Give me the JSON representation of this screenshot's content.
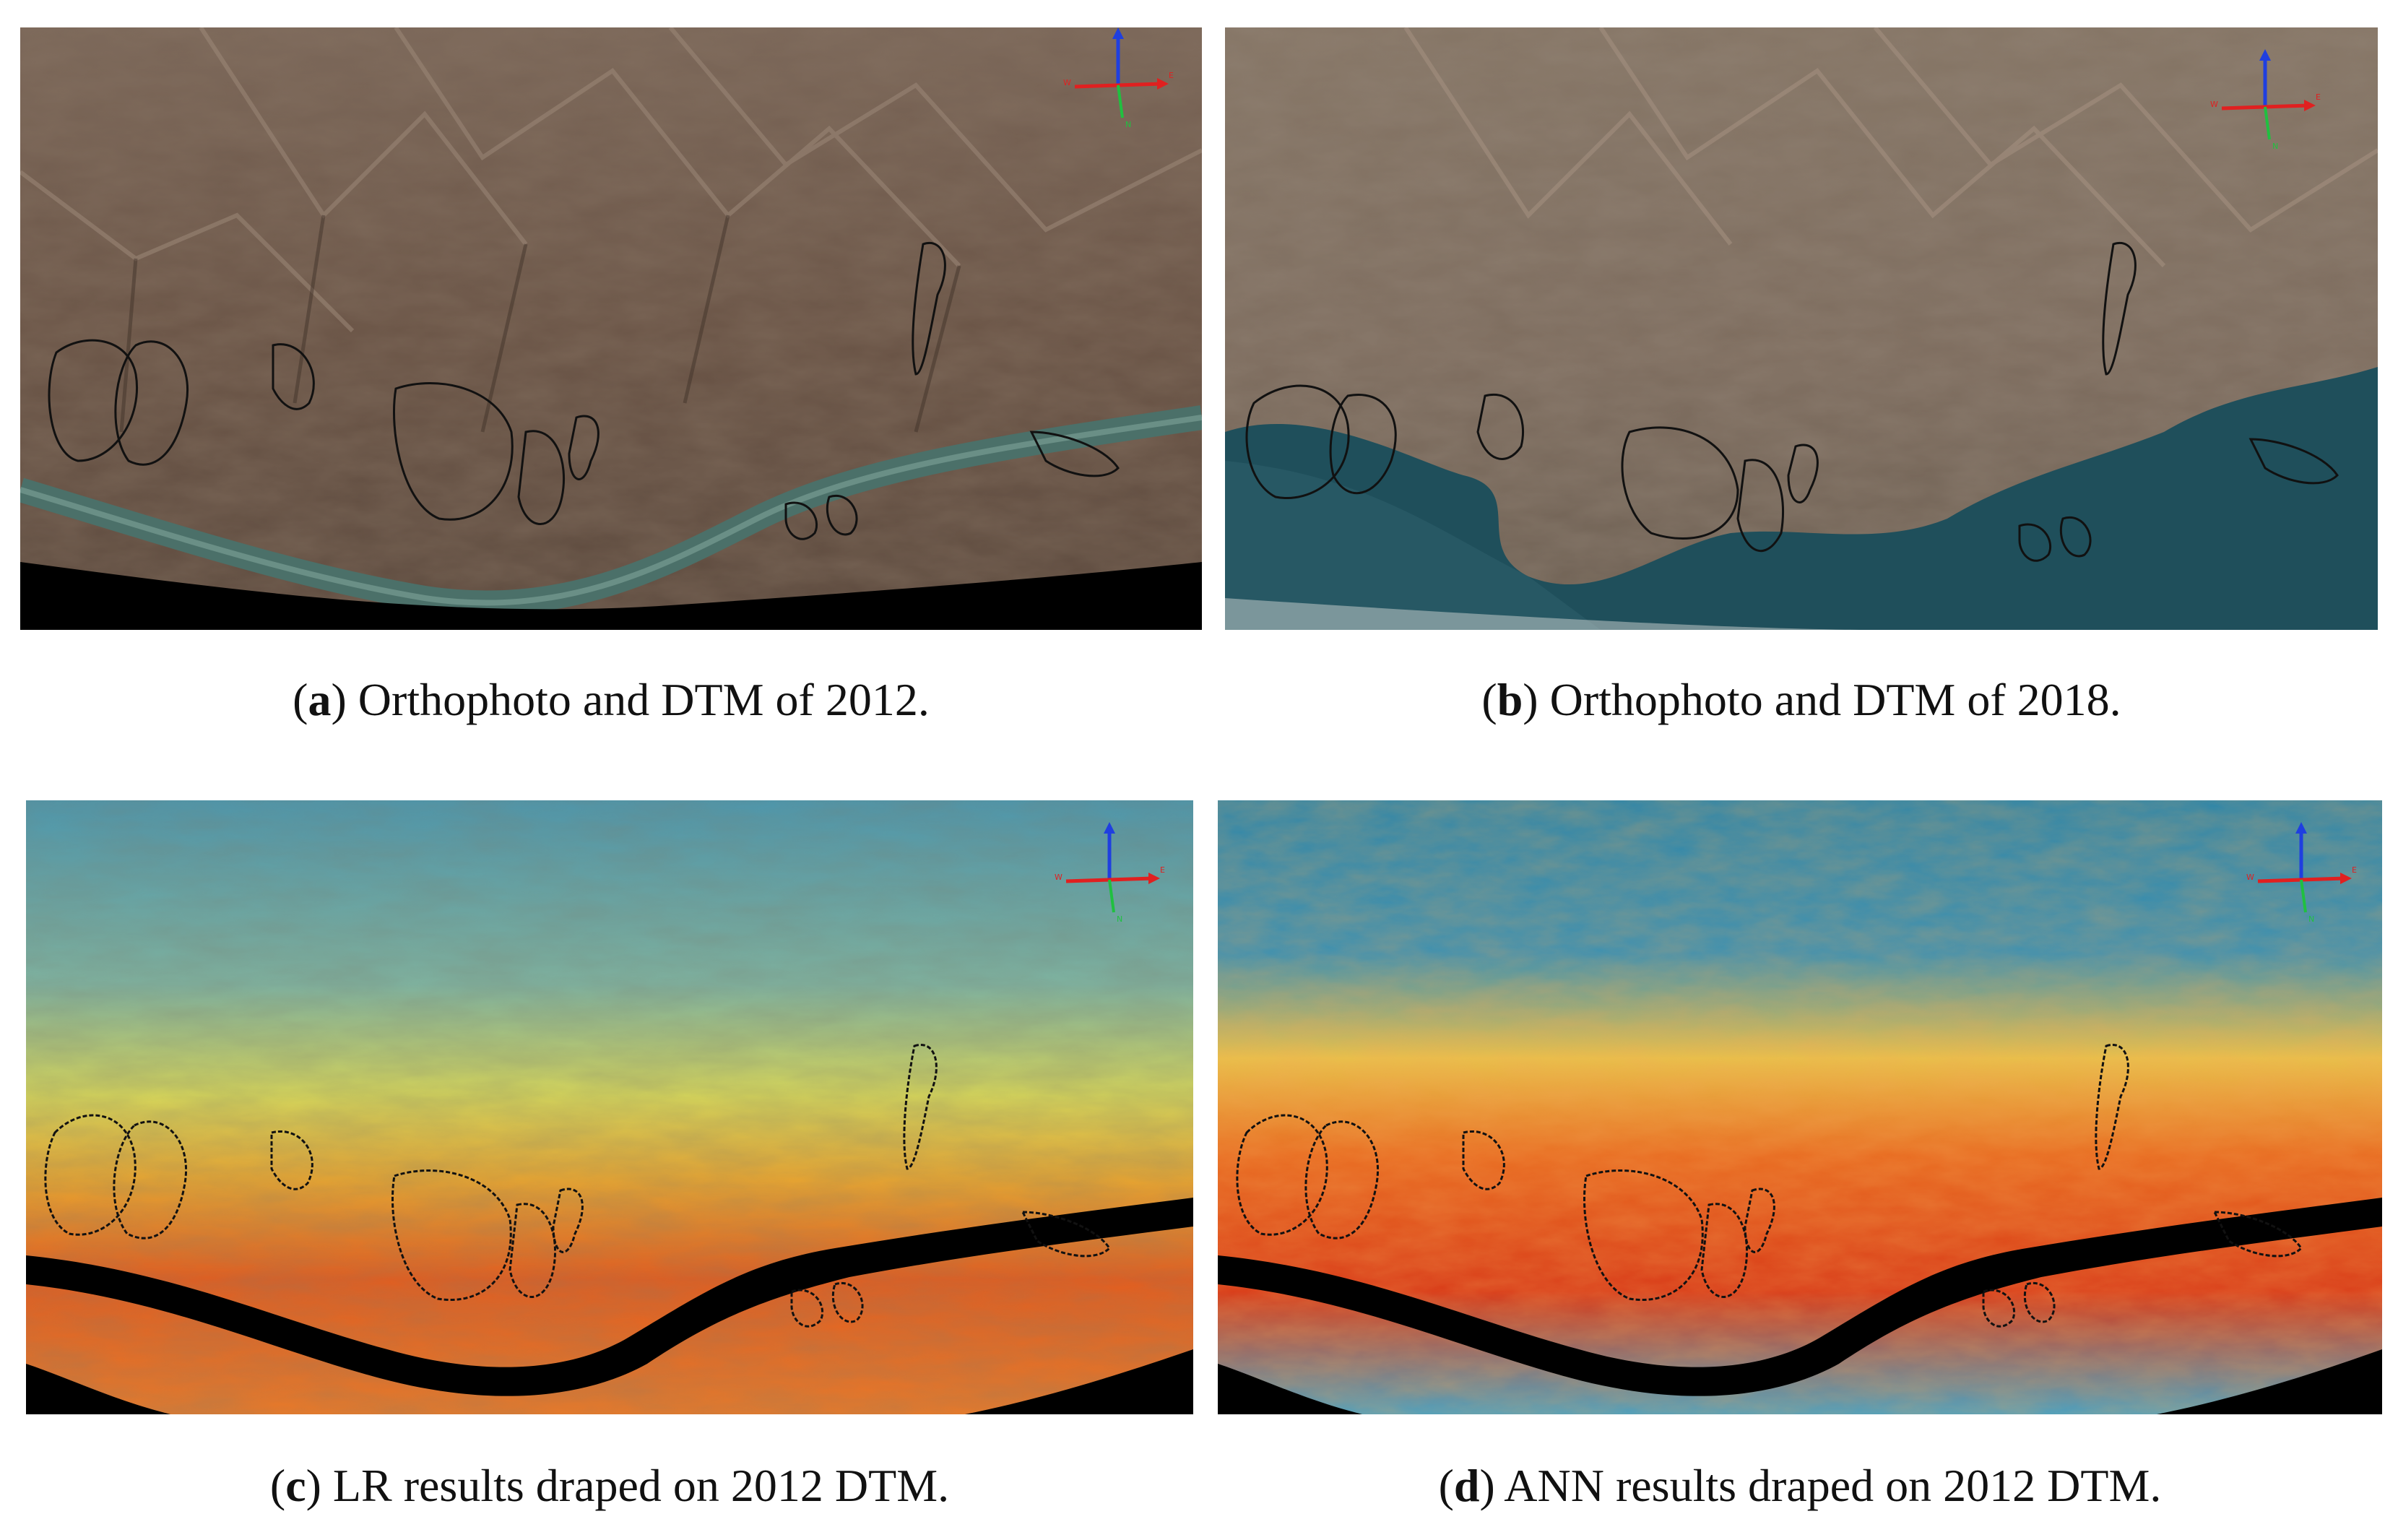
{
  "figure": {
    "panels": [
      {
        "id": "a",
        "letter": "a",
        "caption": ") Orthophoto and DTM of 2012.",
        "style": "ortho2012"
      },
      {
        "id": "b",
        "letter": "b",
        "caption": ") Orthophoto and DTM of 2018.",
        "style": "ortho2018"
      },
      {
        "id": "c",
        "letter": "c",
        "caption": ") LR results draped on 2012 DTM.",
        "style": "lr"
      },
      {
        "id": "d",
        "letter": "d",
        "caption": ") ANN results draped on 2012 DTM.",
        "style": "ann"
      }
    ],
    "open_paren": "(",
    "axis_labels": {
      "east": "E",
      "west": "W",
      "north": "N"
    },
    "colors": {
      "terrain_2012": "#6e5a4c",
      "terrain_2018": "#7d6f62",
      "river": "#3e6660",
      "reservoir": "#1f4f5b",
      "susceptibility_low": "#3a8fb0",
      "susceptibility_mid": "#e8d84a",
      "susceptibility_high": "#e0441c",
      "landslide_outline": "#111111"
    }
  }
}
